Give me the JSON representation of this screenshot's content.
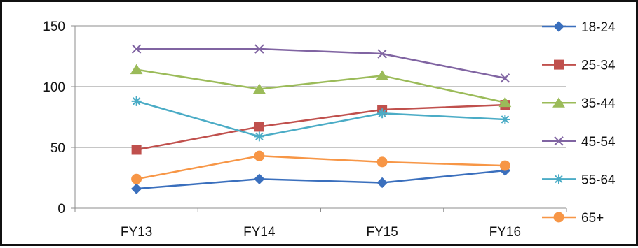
{
  "chart_data": {
    "type": "line",
    "title": "",
    "xlabel": "",
    "ylabel": "",
    "categories": [
      "FY13",
      "FY14",
      "FY15",
      "FY16"
    ],
    "ylim": [
      0,
      150
    ],
    "yticks": [
      0,
      50,
      100,
      150
    ],
    "grid": "horizontal",
    "legend_position": "right",
    "series": [
      {
        "name": "18-24",
        "values": [
          16,
          24,
          21,
          31
        ],
        "color": "#3a6fbd",
        "marker": "diamond"
      },
      {
        "name": "25-34",
        "values": [
          48,
          67,
          81,
          85
        ],
        "color": "#c0504d",
        "marker": "square"
      },
      {
        "name": "35-44",
        "values": [
          114,
          98,
          109,
          87
        ],
        "color": "#9bbb59",
        "marker": "triangle"
      },
      {
        "name": "45-54",
        "values": [
          131,
          131,
          127,
          107
        ],
        "color": "#8064a2",
        "marker": "x"
      },
      {
        "name": "55-64",
        "values": [
          88,
          59,
          78,
          73
        ],
        "color": "#4bacc6",
        "marker": "asterisk"
      },
      {
        "name": "65+",
        "values": [
          24,
          43,
          38,
          35
        ],
        "color": "#f79646",
        "marker": "circle"
      }
    ]
  }
}
